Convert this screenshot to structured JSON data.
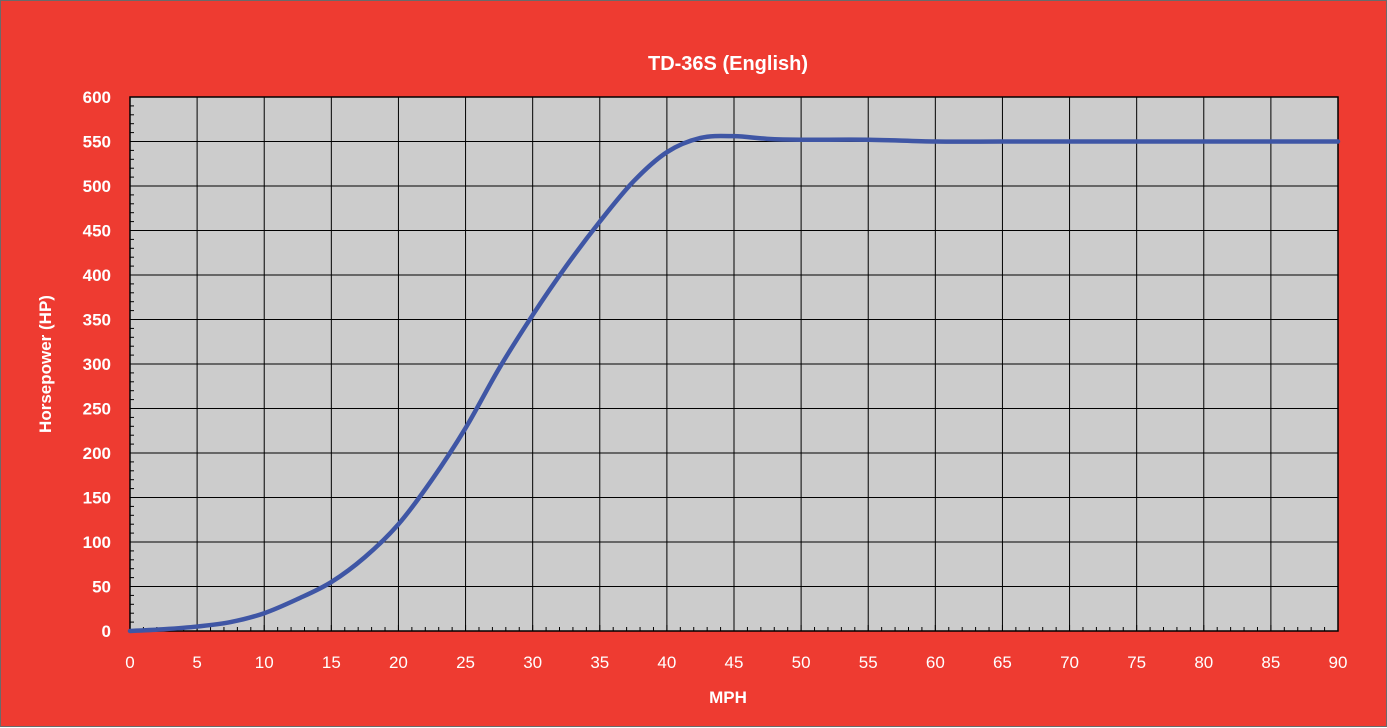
{
  "chart_data": {
    "type": "line",
    "title": "TD-36S (English)",
    "xlabel": "MPH",
    "ylabel": "Horsepower (HP)",
    "xlim": [
      0,
      90
    ],
    "ylim": [
      0,
      600
    ],
    "x_ticks": [
      "0",
      "5",
      "10",
      "15",
      "20",
      "25",
      "30",
      "35",
      "40",
      "45",
      "50",
      "55",
      "60",
      "65",
      "70",
      "75",
      "80",
      "85",
      "90"
    ],
    "y_ticks": [
      "0",
      "50",
      "100",
      "150",
      "200",
      "250",
      "300",
      "350",
      "400",
      "450",
      "500",
      "550",
      "600"
    ],
    "grid": true,
    "legend": "none",
    "series": [
      {
        "color": "#3f56a5",
        "x": [
          0,
          2.5,
          5,
          7.5,
          10,
          12.5,
          15,
          17.5,
          20,
          22.5,
          25,
          27.5,
          30,
          32.5,
          35,
          37.5,
          40,
          42.5,
          45,
          47.5,
          50,
          55,
          60,
          65,
          70,
          75,
          80,
          85,
          90
        ],
        "y": [
          0,
          2,
          5,
          10,
          20,
          36,
          55,
          83,
          120,
          170,
          228,
          295,
          355,
          410,
          460,
          505,
          538,
          554,
          556,
          553,
          552,
          552,
          550,
          550,
          550,
          550,
          550,
          550,
          550
        ]
      }
    ]
  },
  "colors": {
    "background": "#ee3b31",
    "plot_area": "#cccccc",
    "grid": "#000000",
    "line": "#3f56a5",
    "text": "#ffffff"
  }
}
